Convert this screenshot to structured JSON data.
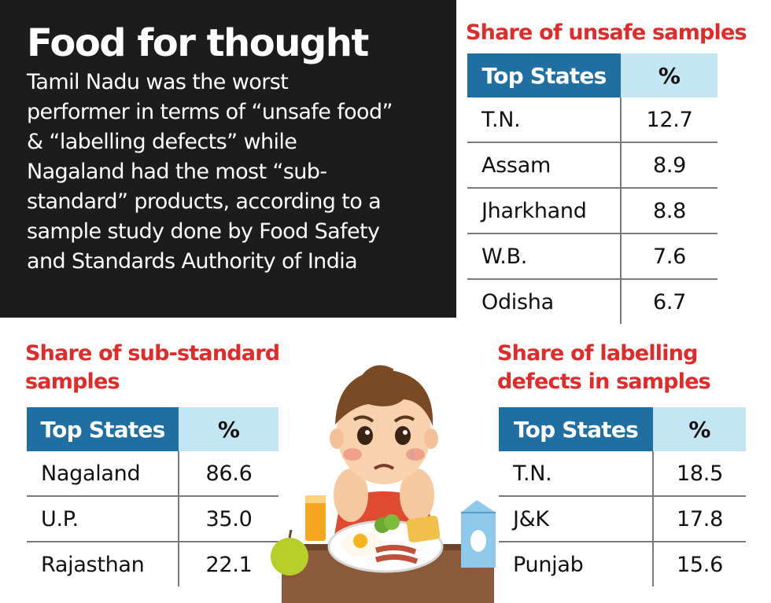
{
  "intro": {
    "title": "Food for thought",
    "lines": [
      "Tamil Nadu was the worst",
      "performer in terms of “unsafe food”",
      "& “labelling defects” while",
      "Nagaland had the most “sub-",
      "standard” products, according to a",
      "sample study done by Food Safety",
      "and Standards Authority of India"
    ]
  },
  "chart_data": [
    {
      "type": "table",
      "title": "Share of unsafe samples",
      "columns": [
        "Top States",
        "%"
      ],
      "rows": [
        {
          "state": "T.N.",
          "value": "12.7"
        },
        {
          "state": "Assam",
          "value": "8.9"
        },
        {
          "state": "Jharkhand",
          "value": "8.8"
        },
        {
          "state": "W.B.",
          "value": "7.6"
        },
        {
          "state": "Odisha",
          "value": "6.7"
        }
      ]
    },
    {
      "type": "table",
      "title": "Share of sub-standard samples",
      "title_lines": [
        "Share of sub-standard",
        "samples"
      ],
      "columns": [
        "Top States",
        "%"
      ],
      "rows": [
        {
          "state": "Nagaland",
          "value": "86.6"
        },
        {
          "state": "U.P.",
          "value": "35.0"
        },
        {
          "state": "Rajasthan",
          "value": "22.1"
        }
      ]
    },
    {
      "type": "table",
      "title": "Share of labelling defects in samples",
      "title_lines": [
        "Share of labelling",
        "defects in samples"
      ],
      "columns": [
        "Top States",
        "%"
      ],
      "rows": [
        {
          "state": "T.N.",
          "value": "18.5"
        },
        {
          "state": "J&K",
          "value": "17.8"
        },
        {
          "state": "Punjab",
          "value": "15.6"
        }
      ]
    }
  ],
  "colors": {
    "title_red": "#e12a2a",
    "header_blue": "#1f6fa3",
    "header_light": "#c4e6f4",
    "intro_bg": "#1c1c1c"
  }
}
